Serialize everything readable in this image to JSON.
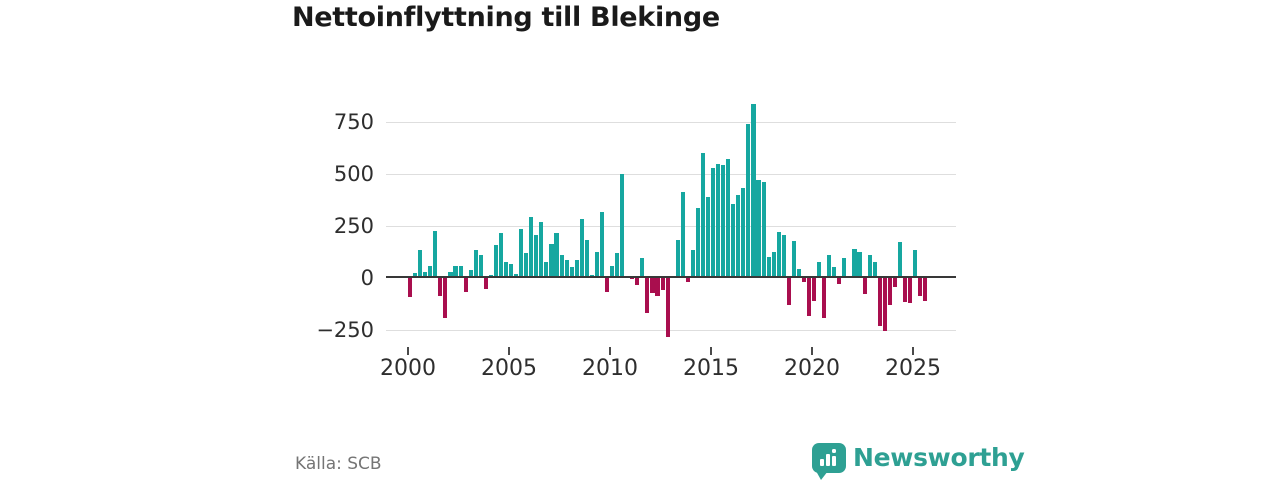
{
  "header": {
    "title": "Nettoinflyttning till Blekinge"
  },
  "footer": {
    "source": "Källa: SCB",
    "brand": "Newsworthy"
  },
  "colors": {
    "positive": "#16a7a0",
    "negative": "#a90e4e",
    "axis": "#383838",
    "grid": "#dedede",
    "brand": "#2ea093"
  },
  "chart_data": {
    "type": "bar",
    "title": "Nettoinflyttning till Blekinge",
    "frequency": "quarterly",
    "start": "2000-Q1",
    "end": "2025-Q3",
    "x_ticks": [
      2000,
      2005,
      2010,
      2015,
      2020,
      2025
    ],
    "y_ticks": [
      750,
      500,
      250,
      0,
      -250
    ],
    "ylim": [
      -320,
      900
    ],
    "grid": true,
    "legend": false,
    "series": [
      {
        "name": "Nettoinflyttning",
        "values": [
          -90,
          25,
          135,
          30,
          60,
          225,
          -85,
          -190,
          30,
          60,
          60,
          -65,
          40,
          135,
          110,
          -55,
          15,
          160,
          215,
          75,
          65,
          20,
          235,
          120,
          295,
          205,
          270,
          75,
          165,
          215,
          110,
          85,
          55,
          85,
          285,
          185,
          15,
          125,
          315,
          -65,
          60,
          120,
          500,
          10,
          -5,
          -35,
          95,
          -170,
          -70,
          -85,
          -60,
          -285,
          0,
          185,
          415,
          -20,
          135,
          335,
          600,
          390,
          530,
          550,
          545,
          570,
          355,
          400,
          435,
          740,
          835,
          470,
          460,
          100,
          125,
          220,
          205,
          -130,
          180,
          45,
          -20,
          -185,
          -110,
          75,
          -190,
          110,
          55,
          -30,
          95,
          0,
          140,
          125,
          -75,
          110,
          75,
          -230,
          -255,
          -130,
          -45,
          175,
          -115,
          -120,
          135,
          -85,
          -110
        ]
      }
    ],
    "bar_colors": {
      "positive": "#16a7a0",
      "negative": "#a90e4e"
    },
    "source": "Källa: SCB"
  }
}
